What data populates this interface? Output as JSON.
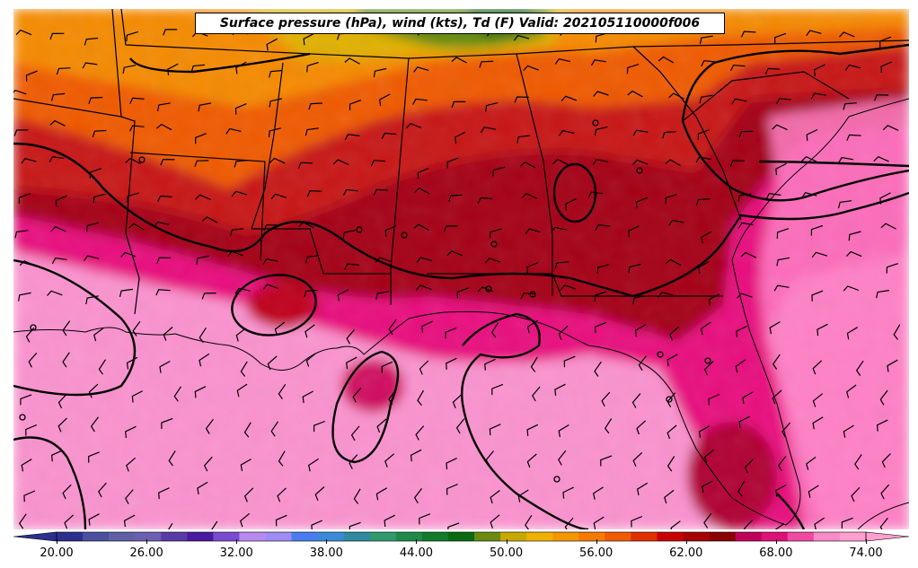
{
  "title": "Surface pressure (hPa), wind (kts), Td (F) Valid: 202105110000f006",
  "colorbar": {
    "min": 20,
    "max": 74,
    "step": 2,
    "extend": "both",
    "tick_labels": [
      "20.00",
      "26.00",
      "32.00",
      "38.00",
      "44.00",
      "50.00",
      "56.00",
      "62.00",
      "68.00",
      "74.00"
    ],
    "tick_values": [
      20,
      26,
      32,
      38,
      44,
      50,
      56,
      62,
      68,
      74
    ],
    "colors": [
      "#2c2f8c",
      "#4a4f9e",
      "#5f5fa8",
      "#6a5fb0",
      "#5a3aa8",
      "#4b1aa0",
      "#7a4ad0",
      "#b88af0",
      "#9d8cf5",
      "#4a7cf0",
      "#3a8ad8",
      "#2f8aa0",
      "#2f9a70",
      "#1f8a4a",
      "#127a2a",
      "#0a6a10",
      "#6a8a10",
      "#c8a800",
      "#f0b000",
      "#f59500",
      "#f57a00",
      "#f05a00",
      "#e03000",
      "#c80000",
      "#a80000",
      "#8a0000",
      "#c0005a",
      "#e0107a",
      "#f04aa0",
      "#f88ac8",
      "#ff9fd0"
    ]
  },
  "legend_colors": {
    "pink": "#fa92cf",
    "magenta": "#e8107e",
    "dark_red": "#9a0008",
    "red": "#c81010",
    "orange": "#f07a00",
    "yellow": "#e0b800",
    "green": "#3a8a10",
    "dark_green": "#0a6010"
  }
}
